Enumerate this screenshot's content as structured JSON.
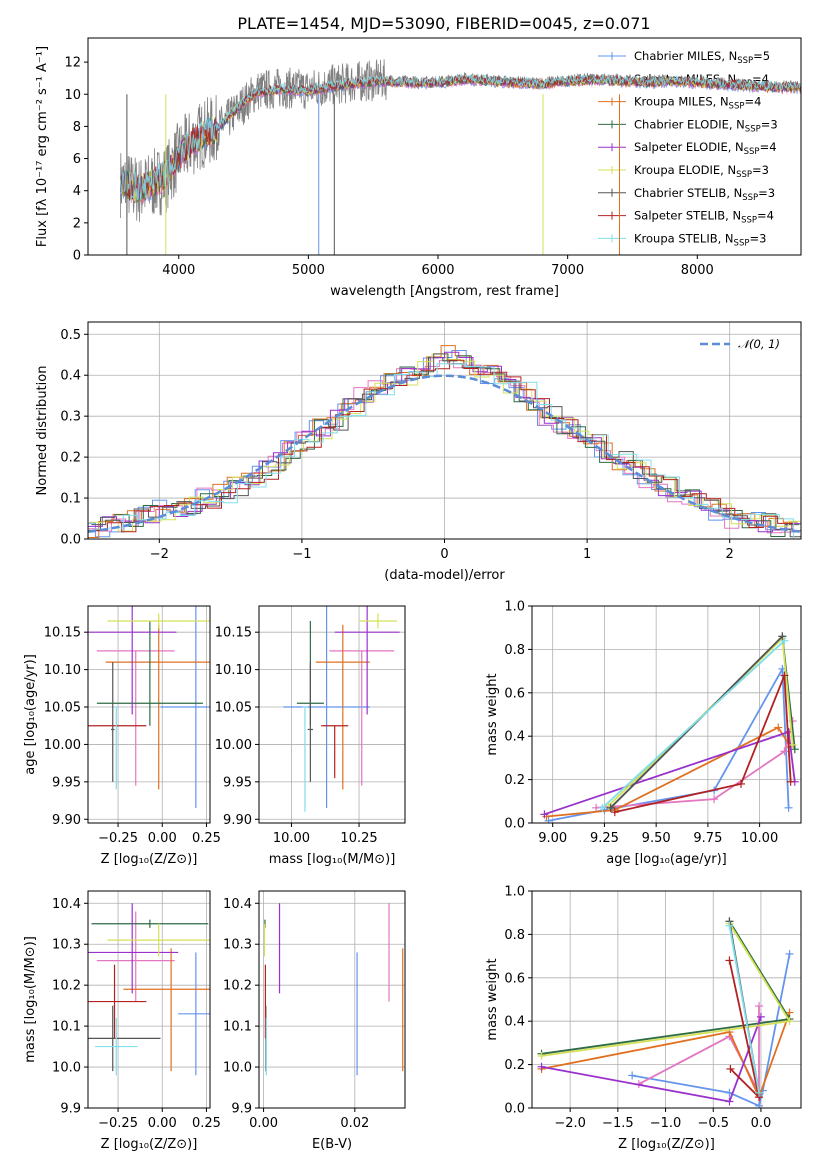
{
  "figure_title": "PLATE=1454, MJD=53090, FIBERID=0045, z=0.071",
  "legend_entries": [
    {
      "label": "Chabrier MILES, N",
      "sub": "SSP",
      "suffix": "=5",
      "color": "#6495ed"
    },
    {
      "label": "Salpeter MILES, N",
      "sub": "SSP",
      "suffix": "=4",
      "color": "#e377c2"
    },
    {
      "label": "Kroupa MILES, N",
      "sub": "SSP",
      "suffix": "=4",
      "color": "#e07020"
    },
    {
      "label": "Chabrier ELODIE, N",
      "sub": "SSP",
      "suffix": "=3",
      "color": "#2e6b45"
    },
    {
      "label": "Salpeter ELODIE, N",
      "sub": "SSP",
      "suffix": "=4",
      "color": "#9932cc"
    },
    {
      "label": "Kroupa ELODIE, N",
      "sub": "SSP",
      "suffix": "=3",
      "color": "#d4e157"
    },
    {
      "label": "Chabrier STELIB, N",
      "sub": "SSP",
      "suffix": "=3",
      "color": "#555555"
    },
    {
      "label": "Salpeter STELIB, N",
      "sub": "SSP",
      "suffix": "=4",
      "color": "#b22222"
    },
    {
      "label": "Kroupa STELIB, N",
      "sub": "SSP",
      "suffix": "=3",
      "color": "#80deea"
    }
  ],
  "chart_data": [
    {
      "type": "line",
      "id": "spectrum",
      "xlabel": "wavelength [Angstrom, rest frame]",
      "ylabel": "Flux [fλ 10⁻¹⁷ erg cm⁻² s⁻¹ A⁻¹]",
      "xlim": [
        3300,
        8800
      ],
      "ylim": [
        0,
        13.5
      ],
      "xticks": [
        4000,
        5000,
        6000,
        7000,
        8000
      ],
      "yticks": [
        0,
        2,
        4,
        6,
        8,
        10,
        12
      ],
      "grid": false,
      "legend": "top-right",
      "data_series": {
        "name": "",
        "color": "#808080",
        "x": [
          3550,
          3700,
          3900,
          4000,
          4100,
          4200,
          4300,
          4400,
          4500,
          4600,
          4800,
          5000,
          5200,
          5400,
          5600,
          5800,
          6000,
          6200,
          6400,
          6600,
          6800,
          7000,
          7200,
          7400,
          7600,
          7800,
          8000,
          8200,
          8400,
          8600,
          8800
        ],
        "y": [
          4.5,
          4.0,
          4.8,
          6.2,
          7.0,
          7.6,
          7.8,
          8.6,
          9.4,
          10.2,
          10.4,
          10.3,
          10.6,
          10.8,
          10.9,
          10.8,
          10.8,
          11.0,
          10.9,
          10.8,
          10.7,
          10.9,
          11.0,
          10.9,
          10.8,
          10.9,
          10.8,
          10.7,
          10.6,
          10.5,
          10.5
        ]
      },
      "model_series": {
        "name": "",
        "color": "#80deea",
        "x": [
          3550,
          3700,
          3900,
          4000,
          4100,
          4200,
          4300,
          4400,
          4500,
          4600,
          4800,
          5000,
          5200,
          5400,
          5600,
          5800,
          6000,
          6200,
          6400,
          6600,
          6800,
          7000,
          7200,
          7400,
          7600,
          7800,
          8000,
          8200,
          8400,
          8600,
          8800
        ],
        "y": [
          4.4,
          4.1,
          4.9,
          6.1,
          7.0,
          7.5,
          7.9,
          8.7,
          9.5,
          10.1,
          10.3,
          10.2,
          10.5,
          10.7,
          10.8,
          10.7,
          10.7,
          10.9,
          10.8,
          10.7,
          10.6,
          10.8,
          10.9,
          10.8,
          10.7,
          10.8,
          10.7,
          10.6,
          10.5,
          10.4,
          10.4
        ]
      }
    },
    {
      "type": "step",
      "id": "residuals",
      "xlabel": "(data-model)/error",
      "ylabel": "Normed distribution",
      "xlim": [
        -2.5,
        2.5
      ],
      "ylim": [
        0,
        0.53
      ],
      "xticks": [
        -2,
        -1,
        0,
        1,
        2
      ],
      "yticks": [
        0.0,
        0.1,
        0.2,
        0.3,
        0.4,
        0.5
      ],
      "grid": true,
      "legend": "top-right",
      "gaussian_label": "𝒩(0, 1)",
      "gaussian_color": "#5b8dd6",
      "bin_edges": [
        -2.5,
        -2.4,
        -2.3,
        -2.2,
        -2.1,
        -2.0,
        -1.9,
        -1.8,
        -1.7,
        -1.6,
        -1.5,
        -1.4,
        -1.3,
        -1.2,
        -1.1,
        -1.0,
        -0.9,
        -0.8,
        -0.7,
        -0.6,
        -0.5,
        -0.4,
        -0.3,
        -0.2,
        -0.1,
        0.0,
        0.1,
        0.2,
        0.3,
        0.4,
        0.5,
        0.6,
        0.7,
        0.8,
        0.9,
        1.0,
        1.1,
        1.2,
        1.3,
        1.4,
        1.5,
        1.6,
        1.7,
        1.8,
        1.9,
        2.0,
        2.1,
        2.2,
        2.3,
        2.4,
        2.5
      ],
      "hist_values": [
        0.02,
        0.03,
        0.04,
        0.05,
        0.06,
        0.07,
        0.07,
        0.08,
        0.1,
        0.11,
        0.13,
        0.15,
        0.17,
        0.19,
        0.22,
        0.24,
        0.27,
        0.29,
        0.32,
        0.35,
        0.37,
        0.38,
        0.4,
        0.42,
        0.44,
        0.45,
        0.44,
        0.42,
        0.4,
        0.38,
        0.36,
        0.33,
        0.3,
        0.28,
        0.26,
        0.24,
        0.21,
        0.19,
        0.17,
        0.15,
        0.13,
        0.11,
        0.1,
        0.08,
        0.07,
        0.05,
        0.04,
        0.04,
        0.03,
        0.02
      ]
    },
    {
      "type": "scatter",
      "id": "age_vs_Z",
      "xlabel": "Z [log₁₀(Z/Z⊙)]",
      "ylabel": "age  [log₁₀(age/yr)]",
      "xlim": [
        -0.42,
        0.27
      ],
      "ylim": [
        9.895,
        10.185
      ],
      "xticks": [
        -0.25,
        0.0,
        0.25
      ],
      "xticklabels": [
        "−0.25",
        "0.00",
        "0.25"
      ],
      "yticks": [
        9.9,
        9.95,
        10.0,
        10.05,
        10.1,
        10.15
      ],
      "grid": true,
      "points": [
        {
          "color": "#6495ed",
          "x": 0.19,
          "y": 10.05,
          "xerr": 0.2,
          "yerr": [
            0.135,
            0.135
          ]
        },
        {
          "color": "#e377c2",
          "x": -0.15,
          "y": 10.125,
          "xerr": 0.22,
          "yerr": [
            0.18,
            0.0
          ]
        },
        {
          "color": "#e07020",
          "x": -0.02,
          "y": 10.11,
          "xerr": 0.3,
          "yerr": [
            0.17,
            0.05
          ]
        },
        {
          "color": "#2e6b45",
          "x": -0.07,
          "y": 10.055,
          "xerr": 0.3,
          "yerr": [
            0.03,
            0.11
          ]
        },
        {
          "color": "#9932cc",
          "x": -0.17,
          "y": 10.15,
          "xerr": 0.25,
          "yerr": [
            0.11,
            0.04
          ]
        },
        {
          "color": "#d4e157",
          "x": -0.02,
          "y": 10.165,
          "xerr": 0.29,
          "yerr": [
            0.01,
            0.01
          ]
        },
        {
          "color": "#555555",
          "x": -0.28,
          "y": 10.02,
          "xerr": 0.01,
          "yerr": [
            0.07,
            0.09
          ]
        },
        {
          "color": "#b22222",
          "x": -0.27,
          "y": 10.025,
          "xerr": 0.18,
          "yerr": [
            0.0,
            0.0
          ]
        },
        {
          "color": "#80deea",
          "x": -0.26,
          "y": 10.05,
          "xerr": 0.01,
          "yerr": [
            0.11,
            0.0
          ]
        }
      ]
    },
    {
      "type": "scatter",
      "id": "age_vs_mass",
      "xlabel": "mass [log₁₀(M/M⊙)]",
      "ylabel": "",
      "xlim": [
        9.88,
        10.42
      ],
      "ylim": [
        9.895,
        10.185
      ],
      "xticks": [
        10.0,
        10.25
      ],
      "yticks": [
        9.9,
        9.95,
        10.0,
        10.05,
        10.1,
        10.15
      ],
      "grid": true,
      "points": [
        {
          "color": "#6495ed",
          "x": 10.13,
          "y": 10.05,
          "xerr": 0.16,
          "yerr": [
            0.135,
            0.135
          ]
        },
        {
          "color": "#e377c2",
          "x": 10.26,
          "y": 10.125,
          "xerr": 0.12,
          "yerr": [
            0.18,
            0.0
          ]
        },
        {
          "color": "#e07020",
          "x": 10.19,
          "y": 10.11,
          "xerr": 0.1,
          "yerr": [
            0.17,
            0.05
          ]
        },
        {
          "color": "#2e6b45",
          "x": 10.07,
          "y": 10.055,
          "xerr": 0.05,
          "yerr": [
            0.03,
            0.11
          ]
        },
        {
          "color": "#9932cc",
          "x": 10.28,
          "y": 10.15,
          "xerr": 0.12,
          "yerr": [
            0.11,
            0.04
          ]
        },
        {
          "color": "#d4e157",
          "x": 10.32,
          "y": 10.165,
          "xerr": 0.07,
          "yerr": [
            0.01,
            0.01
          ]
        },
        {
          "color": "#555555",
          "x": 10.07,
          "y": 10.02,
          "xerr": 0.01,
          "yerr": [
            0.07,
            0.09
          ]
        },
        {
          "color": "#b22222",
          "x": 10.16,
          "y": 10.025,
          "xerr": 0.05,
          "yerr": [
            0.07,
            0.0
          ]
        },
        {
          "color": "#80deea",
          "x": 10.05,
          "y": 10.05,
          "xerr": 0.01,
          "yerr": [
            0.14,
            0.0
          ]
        }
      ]
    },
    {
      "type": "line",
      "id": "weight_vs_age",
      "xlabel": "age  [log₁₀(age/yr)]",
      "ylabel": "mass weight",
      "xlim": [
        8.9,
        10.2
      ],
      "ylim": [
        0.0,
        1.0
      ],
      "xticks": [
        9.0,
        9.25,
        9.5,
        9.75,
        10.0
      ],
      "yticks": [
        0.0,
        0.2,
        0.4,
        0.6,
        0.8,
        1.0
      ],
      "grid": true,
      "series": [
        {
          "color": "#6495ed",
          "x": [
            8.98,
            9.25,
            9.78,
            10.11,
            10.14
          ],
          "y": [
            0.01,
            0.06,
            0.15,
            0.71,
            0.07
          ]
        },
        {
          "color": "#e377c2",
          "x": [
            9.21,
            9.78,
            10.12,
            10.16
          ],
          "y": [
            0.07,
            0.11,
            0.33,
            0.47
          ]
        },
        {
          "color": "#e07020",
          "x": [
            8.97,
            9.3,
            10.09,
            10.15
          ],
          "y": [
            0.03,
            0.06,
            0.44,
            0.35
          ]
        },
        {
          "color": "#2e6b45",
          "x": [
            9.28,
            10.11,
            10.17
          ],
          "y": [
            0.07,
            0.86,
            0.34
          ]
        },
        {
          "color": "#9932cc",
          "x": [
            8.96,
            10.14,
            10.17
          ],
          "y": [
            0.04,
            0.42,
            0.19
          ]
        },
        {
          "color": "#d4e157",
          "x": [
            9.27,
            10.11,
            10.16
          ],
          "y": [
            0.08,
            0.85,
            0.36
          ]
        },
        {
          "color": "#555555",
          "x": [
            9.28,
            10.11
          ],
          "y": [
            0.07,
            0.86
          ]
        },
        {
          "color": "#b22222",
          "x": [
            9.3,
            9.91,
            10.12,
            10.15
          ],
          "y": [
            0.05,
            0.18,
            0.68,
            0.19
          ]
        },
        {
          "color": "#80deea",
          "x": [
            9.24,
            10.12
          ],
          "y": [
            0.07,
            0.84
          ]
        }
      ]
    },
    {
      "type": "scatter",
      "id": "mass_vs_Z",
      "xlabel": "Z [log₁₀(Z/Z⊙)]",
      "ylabel": "mass [log₁₀(M/M⊙)]",
      "xlim": [
        -0.42,
        0.27
      ],
      "ylim": [
        9.9,
        10.43
      ],
      "xticks": [
        -0.25,
        0.0,
        0.25
      ],
      "xticklabels": [
        "−0.25",
        "0.00",
        "0.25"
      ],
      "yticks": [
        9.9,
        10.0,
        10.1,
        10.2,
        10.3,
        10.4
      ],
      "grid": true,
      "points": [
        {
          "color": "#6495ed",
          "x": 0.19,
          "y": 10.13,
          "xerr": 0.1,
          "yerr": [
            0.15,
            0.15
          ]
        },
        {
          "color": "#e377c2",
          "x": -0.15,
          "y": 10.26,
          "xerr": 0.22,
          "yerr": [
            0.1,
            0.12
          ]
        },
        {
          "color": "#e07020",
          "x": 0.05,
          "y": 10.19,
          "xerr": 0.27,
          "yerr": [
            0.2,
            0.1
          ]
        },
        {
          "color": "#2e6b45",
          "x": -0.07,
          "y": 10.35,
          "xerr": 0.33,
          "yerr": [
            0.01,
            0.01
          ]
        },
        {
          "color": "#9932cc",
          "x": -0.17,
          "y": 10.28,
          "xerr": 0.26,
          "yerr": [
            0.1,
            0.12
          ]
        },
        {
          "color": "#d4e157",
          "x": -0.02,
          "y": 10.31,
          "xerr": 0.29,
          "yerr": [
            0.04,
            0.04
          ]
        },
        {
          "color": "#555555",
          "x": -0.28,
          "y": 10.07,
          "xerr": 0.27,
          "yerr": [
            0.08,
            0.08
          ]
        },
        {
          "color": "#b22222",
          "x": -0.27,
          "y": 10.16,
          "xerr": 0.18,
          "yerr": [
            0.09,
            0.09
          ]
        },
        {
          "color": "#80deea",
          "x": -0.26,
          "y": 10.05,
          "xerr": 0.12,
          "yerr": [
            0.07,
            0.07
          ]
        }
      ]
    },
    {
      "type": "scatter",
      "id": "mass_vs_ebv",
      "xlabel": "E(B-V)",
      "ylabel": "",
      "xlim": [
        -0.001,
        0.031
      ],
      "ylim": [
        9.9,
        10.43
      ],
      "xticks": [
        0.0,
        0.02
      ],
      "yticks": [
        9.9,
        10.0,
        10.1,
        10.2,
        10.3,
        10.4
      ],
      "grid": true,
      "points": [
        {
          "color": "#6495ed",
          "x": 0.0205,
          "y": 10.13,
          "xerr": 0.0,
          "yerr": [
            0.15,
            0.15
          ]
        },
        {
          "color": "#e377c2",
          "x": 0.0275,
          "y": 10.26,
          "xerr": 0.0,
          "yerr": [
            0.1,
            0.14
          ]
        },
        {
          "color": "#e07020",
          "x": 0.0305,
          "y": 10.19,
          "xerr": 0.0,
          "yerr": [
            0.2,
            0.1
          ]
        },
        {
          "color": "#2e6b45",
          "x": 0.0003,
          "y": 10.35,
          "xerr": 0.0,
          "yerr": [
            0.01,
            0.01
          ]
        },
        {
          "color": "#9932cc",
          "x": 0.0035,
          "y": 10.28,
          "xerr": 0.0,
          "yerr": [
            0.1,
            0.12
          ]
        },
        {
          "color": "#d4e157",
          "x": 0.0002,
          "y": 10.31,
          "xerr": 0.0,
          "yerr": [
            0.04,
            0.04
          ]
        },
        {
          "color": "#555555",
          "x": 0.0005,
          "y": 10.07,
          "xerr": 0.0,
          "yerr": [
            0.08,
            0.08
          ]
        },
        {
          "color": "#b22222",
          "x": 0.0004,
          "y": 10.16,
          "xerr": 0.0,
          "yerr": [
            0.09,
            0.09
          ]
        },
        {
          "color": "#80deea",
          "x": 0.0006,
          "y": 10.05,
          "xerr": 0.0,
          "yerr": [
            0.07,
            0.07
          ]
        }
      ]
    },
    {
      "type": "line",
      "id": "weight_vs_Z",
      "xlabel": "Z [log₁₀(Z/Z⊙)]",
      "ylabel": "mass weight",
      "xlim": [
        -2.4,
        0.42
      ],
      "ylim": [
        0.0,
        1.0
      ],
      "xticks": [
        -2.0,
        -1.5,
        -1.0,
        -0.5,
        0.0
      ],
      "xticklabels": [
        "−2.0",
        "−1.5",
        "−1.0",
        "−0.5",
        "0.0"
      ],
      "yticks": [
        0.0,
        0.2,
        0.4,
        0.6,
        0.8,
        1.0
      ],
      "grid": true,
      "series": [
        {
          "color": "#6495ed",
          "x": [
            -1.35,
            -0.33,
            -0.02,
            0.02,
            0.3
          ],
          "y": [
            0.15,
            0.07,
            0.01,
            0.08,
            0.71
          ]
        },
        {
          "color": "#e377c2",
          "x": [
            -1.28,
            -0.33,
            -0.02,
            -0.02
          ],
          "y": [
            0.11,
            0.33,
            0.07,
            0.47
          ]
        },
        {
          "color": "#e07020",
          "x": [
            -2.3,
            -0.33,
            -0.02,
            0.3
          ],
          "y": [
            0.18,
            0.35,
            0.05,
            0.44
          ]
        },
        {
          "color": "#2e6b45",
          "x": [
            -2.3,
            0.3,
            -0.33
          ],
          "y": [
            0.25,
            0.41,
            0.86
          ]
        },
        {
          "color": "#9932cc",
          "x": [
            -2.3,
            -0.33,
            0.0
          ],
          "y": [
            0.19,
            0.03,
            0.42
          ]
        },
        {
          "color": "#d4e157",
          "x": [
            -2.3,
            0.3,
            -0.33
          ],
          "y": [
            0.24,
            0.4,
            0.85
          ]
        },
        {
          "color": "#555555",
          "x": [
            -0.33,
            -0.02
          ],
          "y": [
            0.86,
            0.07
          ]
        },
        {
          "color": "#b22222",
          "x": [
            -0.33,
            -0.02,
            -0.32
          ],
          "y": [
            0.68,
            0.05,
            0.18
          ]
        },
        {
          "color": "#80deea",
          "x": [
            -0.33,
            -0.02
          ],
          "y": [
            0.84,
            0.07
          ]
        }
      ]
    }
  ]
}
